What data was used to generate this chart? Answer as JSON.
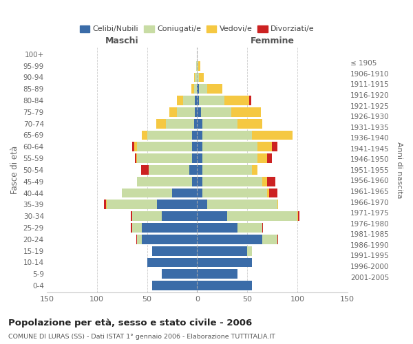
{
  "age_groups": [
    "0-4",
    "5-9",
    "10-14",
    "15-19",
    "20-24",
    "25-29",
    "30-34",
    "35-39",
    "40-44",
    "45-49",
    "50-54",
    "55-59",
    "60-64",
    "65-69",
    "70-74",
    "75-79",
    "80-84",
    "85-89",
    "90-94",
    "95-99",
    "100+"
  ],
  "birth_years": [
    "2001-2005",
    "1996-2000",
    "1991-1995",
    "1986-1990",
    "1981-1985",
    "1976-1980",
    "1971-1975",
    "1966-1970",
    "1961-1965",
    "1956-1960",
    "1951-1955",
    "1946-1950",
    "1941-1945",
    "1936-1940",
    "1931-1935",
    "1926-1930",
    "1921-1925",
    "1916-1920",
    "1911-1915",
    "1906-1910",
    "≤ 1905"
  ],
  "male_celibi": [
    45,
    35,
    50,
    45,
    55,
    55,
    35,
    40,
    25,
    5,
    8,
    5,
    5,
    5,
    3,
    2,
    2,
    0,
    0,
    0,
    0
  ],
  "male_coniugati": [
    0,
    0,
    0,
    0,
    5,
    10,
    30,
    50,
    50,
    55,
    40,
    55,
    55,
    45,
    28,
    18,
    12,
    3,
    2,
    1,
    0
  ],
  "male_vedovi": [
    0,
    0,
    0,
    0,
    0,
    0,
    0,
    1,
    0,
    0,
    0,
    1,
    3,
    5,
    10,
    8,
    6,
    3,
    1,
    0,
    0
  ],
  "male_divorziati": [
    0,
    0,
    0,
    0,
    1,
    1,
    1,
    2,
    0,
    0,
    8,
    1,
    2,
    0,
    0,
    0,
    0,
    0,
    0,
    0,
    0
  ],
  "female_nubili": [
    55,
    40,
    55,
    50,
    65,
    40,
    30,
    10,
    5,
    5,
    5,
    5,
    5,
    5,
    5,
    4,
    2,
    2,
    0,
    0,
    0
  ],
  "female_coniugate": [
    0,
    0,
    0,
    5,
    15,
    25,
    70,
    70,
    65,
    60,
    50,
    55,
    55,
    50,
    35,
    30,
    25,
    8,
    2,
    1,
    0
  ],
  "female_vedove": [
    0,
    0,
    0,
    0,
    0,
    0,
    1,
    1,
    2,
    5,
    5,
    10,
    15,
    40,
    25,
    30,
    25,
    15,
    5,
    2,
    0
  ],
  "female_divorziate": [
    0,
    0,
    0,
    0,
    1,
    1,
    1,
    0,
    8,
    8,
    0,
    5,
    5,
    0,
    0,
    0,
    2,
    0,
    0,
    0,
    0
  ],
  "colors": {
    "celibi": "#3b6ca8",
    "coniugati": "#c8dca4",
    "vedovi": "#f5c842",
    "divorziati": "#cc2222"
  },
  "xlim": 150,
  "title": "Popolazione per età, sesso e stato civile - 2006",
  "subtitle": "COMUNE DI LURAS (SS) - Dati ISTAT 1° gennaio 2006 - Elaborazione TUTTITALIA.IT",
  "xlabel_left": "Maschi",
  "xlabel_right": "Femmine",
  "ylabel_left": "Fasce di età",
  "ylabel_right": "Anni di nascita"
}
